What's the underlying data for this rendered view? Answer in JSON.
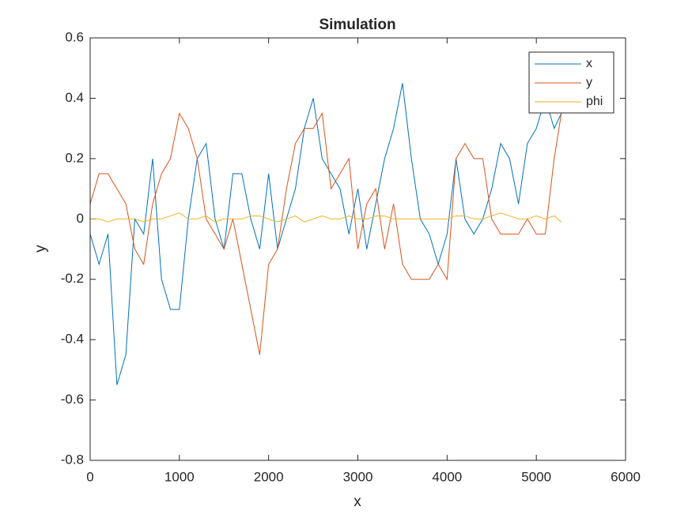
{
  "chart_data": {
    "type": "line",
    "title": "Simulation",
    "x_label": "x",
    "y_label": "y",
    "x": [
      0,
      100,
      200,
      300,
      400,
      500,
      600,
      700,
      800,
      900,
      1000,
      1100,
      1200,
      1300,
      1400,
      1500,
      1600,
      1700,
      1800,
      1900,
      2000,
      2100,
      2200,
      2300,
      2400,
      2500,
      2600,
      2700,
      2800,
      2900,
      3000,
      3100,
      3200,
      3300,
      3400,
      3500,
      3600,
      3700,
      3800,
      3900,
      4000,
      4100,
      4200,
      4300,
      4400,
      4500,
      4600,
      4700,
      4800,
      4900,
      5000,
      5100,
      5200,
      5280
    ],
    "series": [
      {
        "name": "x",
        "color": "#0072BD",
        "values": [
          -0.05,
          -0.15,
          -0.05,
          -0.55,
          -0.45,
          0,
          -0.05,
          0.2,
          -0.2,
          -0.3,
          -0.3,
          0,
          0.2,
          0.25,
          0,
          -0.1,
          0.15,
          0.15,
          0,
          -0.1,
          0.15,
          -0.1,
          0,
          0.1,
          0.3,
          0.4,
          0.2,
          0.15,
          0.1,
          -0.05,
          0.1,
          -0.1,
          0.05,
          0.2,
          0.3,
          0.45,
          0.2,
          0,
          -0.05,
          -0.15,
          -0.05,
          0.2,
          0,
          -0.05,
          0,
          0.1,
          0.25,
          0.2,
          0.05,
          0.25,
          0.3,
          0.4,
          0.3,
          0.35
        ]
      },
      {
        "name": "y",
        "color": "#D95319",
        "values": [
          0.05,
          0.15,
          0.15,
          0.1,
          0.05,
          -0.1,
          -0.15,
          0.05,
          0.15,
          0.2,
          0.35,
          0.3,
          0.2,
          0,
          -0.05,
          -0.1,
          0,
          -0.15,
          -0.3,
          -0.45,
          -0.15,
          -0.1,
          0.1,
          0.25,
          0.3,
          0.3,
          0.35,
          0.1,
          0.15,
          0.2,
          -0.1,
          0.05,
          0.1,
          -0.1,
          0.05,
          -0.15,
          -0.2,
          -0.2,
          -0.2,
          -0.15,
          -0.2,
          0.2,
          0.25,
          0.2,
          0.2,
          0,
          -0.05,
          -0.05,
          -0.05,
          0,
          -0.05,
          -0.05,
          0.2,
          0.35
        ]
      },
      {
        "name": "phi",
        "color": "#EDB120",
        "values": [
          0,
          0,
          -0.01,
          0,
          0,
          0,
          -0.01,
          0,
          0,
          0.01,
          0.02,
          0,
          0,
          0.01,
          -0.01,
          0,
          0,
          0,
          0.01,
          0.01,
          0,
          -0.01,
          0,
          0.01,
          -0.01,
          0,
          0.01,
          0,
          0,
          0.01,
          0,
          0,
          0.01,
          0.01,
          0,
          0,
          0,
          0,
          0,
          0,
          0,
          0.01,
          0.01,
          0,
          0,
          0.01,
          0.02,
          0.01,
          0,
          0,
          0.01,
          0,
          0.01,
          -0.01
        ]
      }
    ],
    "xlim": [
      0,
      6000
    ],
    "xticks": [
      0,
      1000,
      2000,
      3000,
      4000,
      5000,
      6000
    ],
    "ylim": [
      -0.8,
      0.6
    ],
    "yticks": [
      -0.8,
      -0.6,
      -0.4,
      -0.2,
      0,
      0.2,
      0.4,
      0.6
    ],
    "grid": false,
    "legend_position": "northeast"
  }
}
